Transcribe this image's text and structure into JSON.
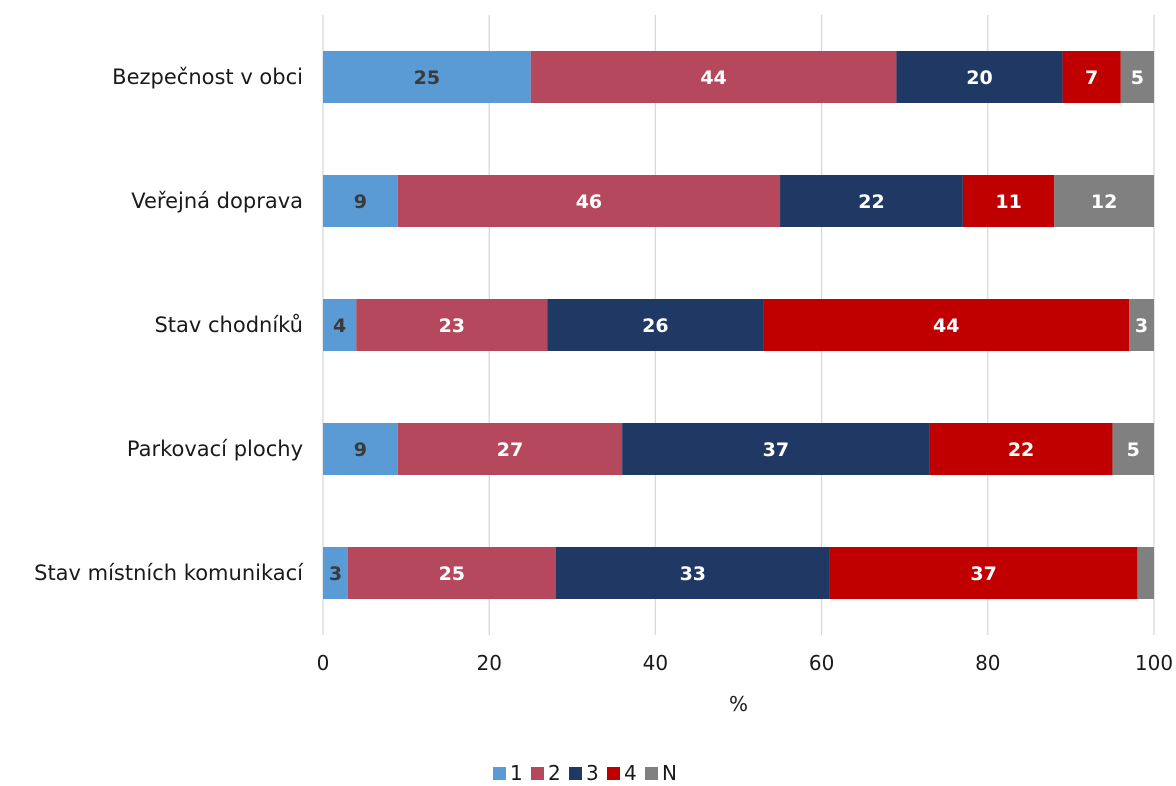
{
  "chart_data": {
    "type": "bar",
    "orientation": "horizontal",
    "stacked": true,
    "categories": [
      "Bezpečnost v obci",
      "Veřejná doprava",
      "Stav chodníků",
      "Parkovací plochy",
      "Stav místních komunikací"
    ],
    "series": [
      {
        "name": "1",
        "color": "#5b9bd5",
        "label_color": "#3a3a3a",
        "values": [
          25,
          9,
          4,
          9,
          3
        ],
        "labels": [
          "25",
          "9",
          "4",
          "9",
          "3"
        ]
      },
      {
        "name": "2",
        "color": "#b5485d",
        "label_color": "#ffffff",
        "values": [
          44,
          46,
          23,
          27,
          25
        ],
        "labels": [
          "44",
          "46",
          "23",
          "27",
          "25"
        ]
      },
      {
        "name": "3",
        "color": "#203864",
        "label_color": "#ffffff",
        "values": [
          20,
          22,
          26,
          37,
          33
        ],
        "labels": [
          "20",
          "22",
          "26",
          "37",
          "33"
        ]
      },
      {
        "name": "4",
        "color": "#c00000",
        "label_color": "#ffffff",
        "values": [
          7,
          11,
          44,
          22,
          37
        ],
        "labels": [
          "7",
          "11",
          "44",
          "22",
          "37"
        ]
      },
      {
        "name": "N",
        "color": "#808080",
        "label_color": "#ffffff",
        "values": [
          5,
          12,
          3,
          5,
          2
        ],
        "labels": [
          "5",
          "12",
          "3",
          "5",
          ""
        ]
      }
    ],
    "xlim": [
      0,
      100
    ],
    "xticks": [
      "0",
      "20",
      "40",
      "60",
      "80",
      "100"
    ],
    "xlabel": "%",
    "ylabel": "",
    "title": "",
    "grid": "vertical",
    "legend": "bottom"
  }
}
